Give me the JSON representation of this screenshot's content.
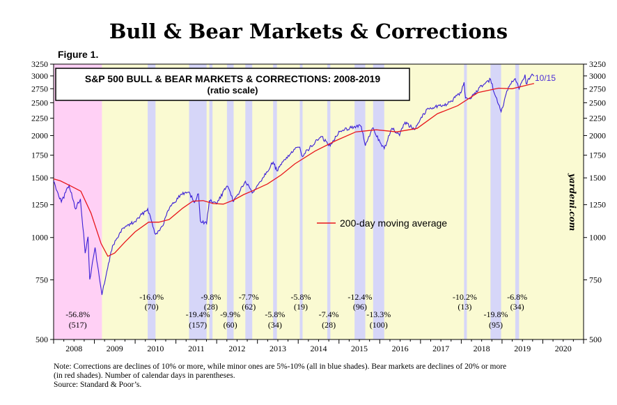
{
  "header": {
    "title": "Bull & Bear Markets & Corrections",
    "figure_label": "Figure 1."
  },
  "chart_data": {
    "type": "line",
    "title": "S&P 500 BULL & BEAR MARKETS & CORRECTIONS: 2008-2019",
    "subtitle": "(ratio scale)",
    "y_scale": "log",
    "ylim": [
      500,
      3250
    ],
    "y_ticks": [
      500,
      750,
      1000,
      1250,
      1500,
      1750,
      2000,
      2250,
      2500,
      2750,
      3000,
      3250
    ],
    "y_tick_labels": [
      "500",
      "750",
      "1000",
      "1250",
      "1500",
      "1750",
      "2000",
      "2250",
      "2500",
      "2750",
      "3000",
      "3250"
    ],
    "x_range": [
      "2008-01-01",
      "2021-01-01"
    ],
    "x_tick_labels": [
      "2008",
      "2009",
      "2010",
      "2011",
      "2012",
      "2013",
      "2014",
      "2015",
      "2016",
      "2017",
      "2018",
      "2019",
      "2020"
    ],
    "grid": false,
    "legend": {
      "placement": "middle-right",
      "label": "200-day moving average"
    },
    "watermark": "yardeni.com",
    "end_label": "10/15",
    "colors": {
      "price": "#3a1fd6",
      "ma": "#e8161b",
      "bull": "#fafad2",
      "bear": "#ffd0f5",
      "correction": "#d6d6f8",
      "end_label": "#4a2bd6"
    },
    "series": [
      {
        "name": "S&P 500",
        "x": [
          "2008-01-01",
          "2008-03-10",
          "2008-05-19",
          "2008-07-15",
          "2008-08-28",
          "2008-10-10",
          "2008-11-04",
          "2008-11-20",
          "2009-01-06",
          "2009-03-09",
          "2009-06-12",
          "2009-09-18",
          "2009-12-31",
          "2010-04-23",
          "2010-07-02",
          "2010-09-01",
          "2010-11-05",
          "2011-02-18",
          "2011-04-29",
          "2011-06-15",
          "2011-07-22",
          "2011-08-08",
          "2011-10-03",
          "2011-10-27",
          "2011-12-30",
          "2012-04-02",
          "2012-06-01",
          "2012-09-14",
          "2012-11-15",
          "2012-12-31",
          "2013-05-21",
          "2013-06-24",
          "2013-09-18",
          "2013-12-31",
          "2014-01-15",
          "2014-02-03",
          "2014-07-24",
          "2014-10-15",
          "2014-12-31",
          "2015-05-21",
          "2015-07-20",
          "2015-08-25",
          "2015-11-03",
          "2016-01-20",
          "2016-02-11",
          "2016-04-20",
          "2016-06-27",
          "2016-08-15",
          "2016-11-04",
          "2016-12-31",
          "2017-03-01",
          "2017-06-19",
          "2017-09-01",
          "2017-12-29",
          "2018-01-26",
          "2018-02-08",
          "2018-04-02",
          "2018-06-15",
          "2018-09-20",
          "2018-10-29",
          "2018-12-24",
          "2019-02-28",
          "2019-04-30",
          "2019-06-03",
          "2019-07-26",
          "2019-08-05",
          "2019-09-19",
          "2019-10-15"
        ],
        "values": [
          1468,
          1273,
          1426,
          1214,
          1300,
          899,
          1005,
          752,
          934,
          677,
          946,
          1068,
          1115,
          1217,
          1022,
          1080,
          1225,
          1343,
          1363,
          1268,
          1345,
          1119,
          1099,
          1284,
          1257,
          1419,
          1278,
          1465,
          1353,
          1426,
          1669,
          1573,
          1725,
          1848,
          1848,
          1741,
          1988,
          1862,
          2059,
          2130,
          2128,
          1867,
          2109,
          1859,
          1829,
          2102,
          2000,
          2190,
          2085,
          2239,
          2395,
          2453,
          2476,
          2673,
          2873,
          2581,
          2581,
          2780,
          2931,
          2641,
          2351,
          2784,
          2945,
          2744,
          3025,
          2844,
          3006,
          2995
        ]
      },
      {
        "name": "200-day moving average",
        "x": [
          "2008-01-01",
          "2008-03-01",
          "2008-06-01",
          "2008-09-01",
          "2008-12-01",
          "2009-03-01",
          "2009-05-01",
          "2009-07-01",
          "2009-10-01",
          "2010-01-01",
          "2010-05-01",
          "2010-08-01",
          "2010-11-01",
          "2011-03-01",
          "2011-06-01",
          "2011-09-01",
          "2011-12-01",
          "2012-03-01",
          "2012-06-01",
          "2012-09-01",
          "2012-12-01",
          "2013-04-01",
          "2013-08-01",
          "2013-12-01",
          "2014-06-01",
          "2014-12-01",
          "2015-06-01",
          "2015-12-01",
          "2016-06-01",
          "2016-12-01",
          "2017-06-01",
          "2017-12-01",
          "2018-06-01",
          "2018-12-01",
          "2019-04-01",
          "2019-10-15"
        ],
        "values": [
          1490,
          1470,
          1420,
          1370,
          1180,
          960,
          880,
          900,
          970,
          1040,
          1110,
          1110,
          1130,
          1220,
          1280,
          1285,
          1260,
          1255,
          1290,
          1340,
          1380,
          1440,
          1530,
          1650,
          1800,
          1930,
          2050,
          2080,
          2050,
          2100,
          2320,
          2450,
          2680,
          2760,
          2750,
          2850
        ]
      }
    ],
    "regimes": [
      {
        "type": "bear",
        "start": "2007-10-09",
        "end": "2009-03-09",
        "label": "-56.8%",
        "days": "(517)"
      },
      {
        "type": "correction",
        "start": "2010-04-23",
        "end": "2010-07-02",
        "label": "-16.0%",
        "days": "(70)"
      },
      {
        "type": "correction",
        "start": "2011-04-29",
        "end": "2011-10-03",
        "label": "-19.4%",
        "days": "(157)"
      },
      {
        "type": "correction",
        "start": "2011-10-27",
        "end": "2011-11-25",
        "label": "-9.8%",
        "days": "(28)"
      },
      {
        "type": "correction",
        "start": "2012-04-02",
        "end": "2012-06-01",
        "label": "-9.9%",
        "days": "(60)"
      },
      {
        "type": "correction",
        "start": "2012-09-14",
        "end": "2012-11-15",
        "label": "-7.7%",
        "days": "(62)"
      },
      {
        "type": "correction",
        "start": "2013-05-21",
        "end": "2013-06-24",
        "label": "-5.8%",
        "days": "(34)"
      },
      {
        "type": "correction",
        "start": "2014-01-15",
        "end": "2014-02-03",
        "label": "-5.8%",
        "days": "(19)"
      },
      {
        "type": "correction",
        "start": "2014-09-18",
        "end": "2014-10-16",
        "label": "-7.4%",
        "days": "(28)"
      },
      {
        "type": "correction",
        "start": "2015-05-21",
        "end": "2015-08-25",
        "label": "-12.4%",
        "days": "(96)"
      },
      {
        "type": "correction",
        "start": "2015-11-03",
        "end": "2016-02-11",
        "label": "-13.3%",
        "days": "(100)"
      },
      {
        "type": "correction",
        "start": "2018-01-26",
        "end": "2018-02-08",
        "label": "-10.2%",
        "days": "(13)"
      },
      {
        "type": "correction",
        "start": "2018-09-20",
        "end": "2018-12-24",
        "label": "-19.8%",
        "days": "(95)"
      },
      {
        "type": "correction",
        "start": "2019-04-30",
        "end": "2019-06-03",
        "label": "-6.8%",
        "days": "(34)"
      }
    ]
  },
  "footnote": {
    "line1": "Note: Corrections are declines of 10% or more, while minor ones are 5%-10% (all in blue shades).  Bear markets are declines of 20% or more",
    "line2": "(in red shades). Number of calendar days in parentheses.",
    "line3": "Source: Standard & Poor’s."
  }
}
